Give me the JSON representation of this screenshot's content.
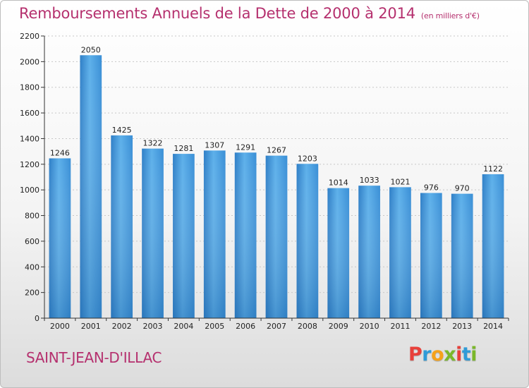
{
  "header": {
    "title": "Remboursements Annuels de la Dette de 2000 à 2014",
    "unit": "(en milliers d'€)"
  },
  "footer": {
    "city": "SAINT-JEAN-D'ILLAC",
    "logo_letters": [
      "P",
      "r",
      "o",
      "x",
      "i",
      "t",
      "i"
    ],
    "logo_colors": [
      "#e8403a",
      "#2f9bd8",
      "#f5a21b",
      "#7ab829",
      "#e8403a",
      "#2f9bd8",
      "#7ab829"
    ]
  },
  "colors": {
    "bar": "#3a8fd6",
    "bar_light": "#5db0ea",
    "title": "#b5306e",
    "grid": "#c8c8c8"
  },
  "chart_data": {
    "type": "bar",
    "title": "Remboursements Annuels de la Dette de 2000 à 2014",
    "subtitle": "(en milliers d'€)",
    "xlabel": "",
    "ylabel": "",
    "categories": [
      "2000",
      "2001",
      "2002",
      "2003",
      "2004",
      "2005",
      "2006",
      "2007",
      "2008",
      "2009",
      "2010",
      "2011",
      "2012",
      "2013",
      "2014"
    ],
    "values": [
      1246,
      2050,
      1425,
      1322,
      1281,
      1307,
      1291,
      1267,
      1203,
      1014,
      1033,
      1021,
      976,
      970,
      1122
    ],
    "data_labels": [
      "1246",
      "2050",
      "1425",
      "1322",
      "1281",
      "1307",
      "1291",
      "1267",
      "1203",
      "1014",
      "1033",
      "1021",
      "976",
      "970",
      "1122"
    ],
    "ylim": [
      0,
      2200
    ],
    "yticks": [
      0,
      200,
      400,
      600,
      800,
      1000,
      1200,
      1400,
      1600,
      1800,
      2000,
      2200
    ],
    "ytick_labels": [
      "0",
      "200",
      "400",
      "600",
      "800",
      "1000",
      "1200",
      "1400",
      "1600",
      "1800",
      "2000",
      "2200"
    ],
    "grid": true,
    "grid_style": "dashed horizontal",
    "legend": "none"
  }
}
